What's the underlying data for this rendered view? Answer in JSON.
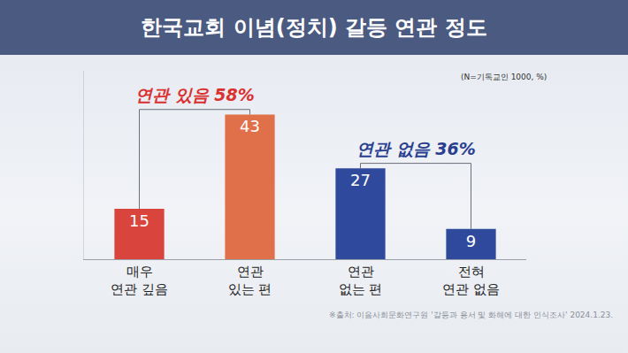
{
  "chart_data": {
    "type": "bar",
    "title": "한국교회 이념(정치) 갈등 연관 정도",
    "subtitle": "(N=기독교인 1000, %)",
    "categories": [
      "매우 연관 깊음",
      "연관 있는 편",
      "연관 없는 편",
      "전혀 연관 없음"
    ],
    "values": [
      15,
      43,
      27,
      9
    ],
    "colors": [
      "#d9453d",
      "#e07049",
      "#2f4a9c",
      "#2f4a9c"
    ],
    "ylim": [
      0,
      56
    ],
    "yticks": [],
    "tick_labels": "x",
    "data_labels": true,
    "grid": false,
    "annotations": [
      {
        "text": "연관 있음 58%",
        "categories": [
          "매우 연관 깊음",
          "연관 있는 편"
        ],
        "color": "#d9312f"
      },
      {
        "text": "연관 없음 36%",
        "categories": [
          "연관 없는 편",
          "전혀 연관 없음"
        ],
        "color": "#2a3f8f"
      }
    ],
    "source": "※출처: 이음사회문화연구원 '갈등과 용서 및 화해에 대한 인식조사' 2024.1.23."
  }
}
